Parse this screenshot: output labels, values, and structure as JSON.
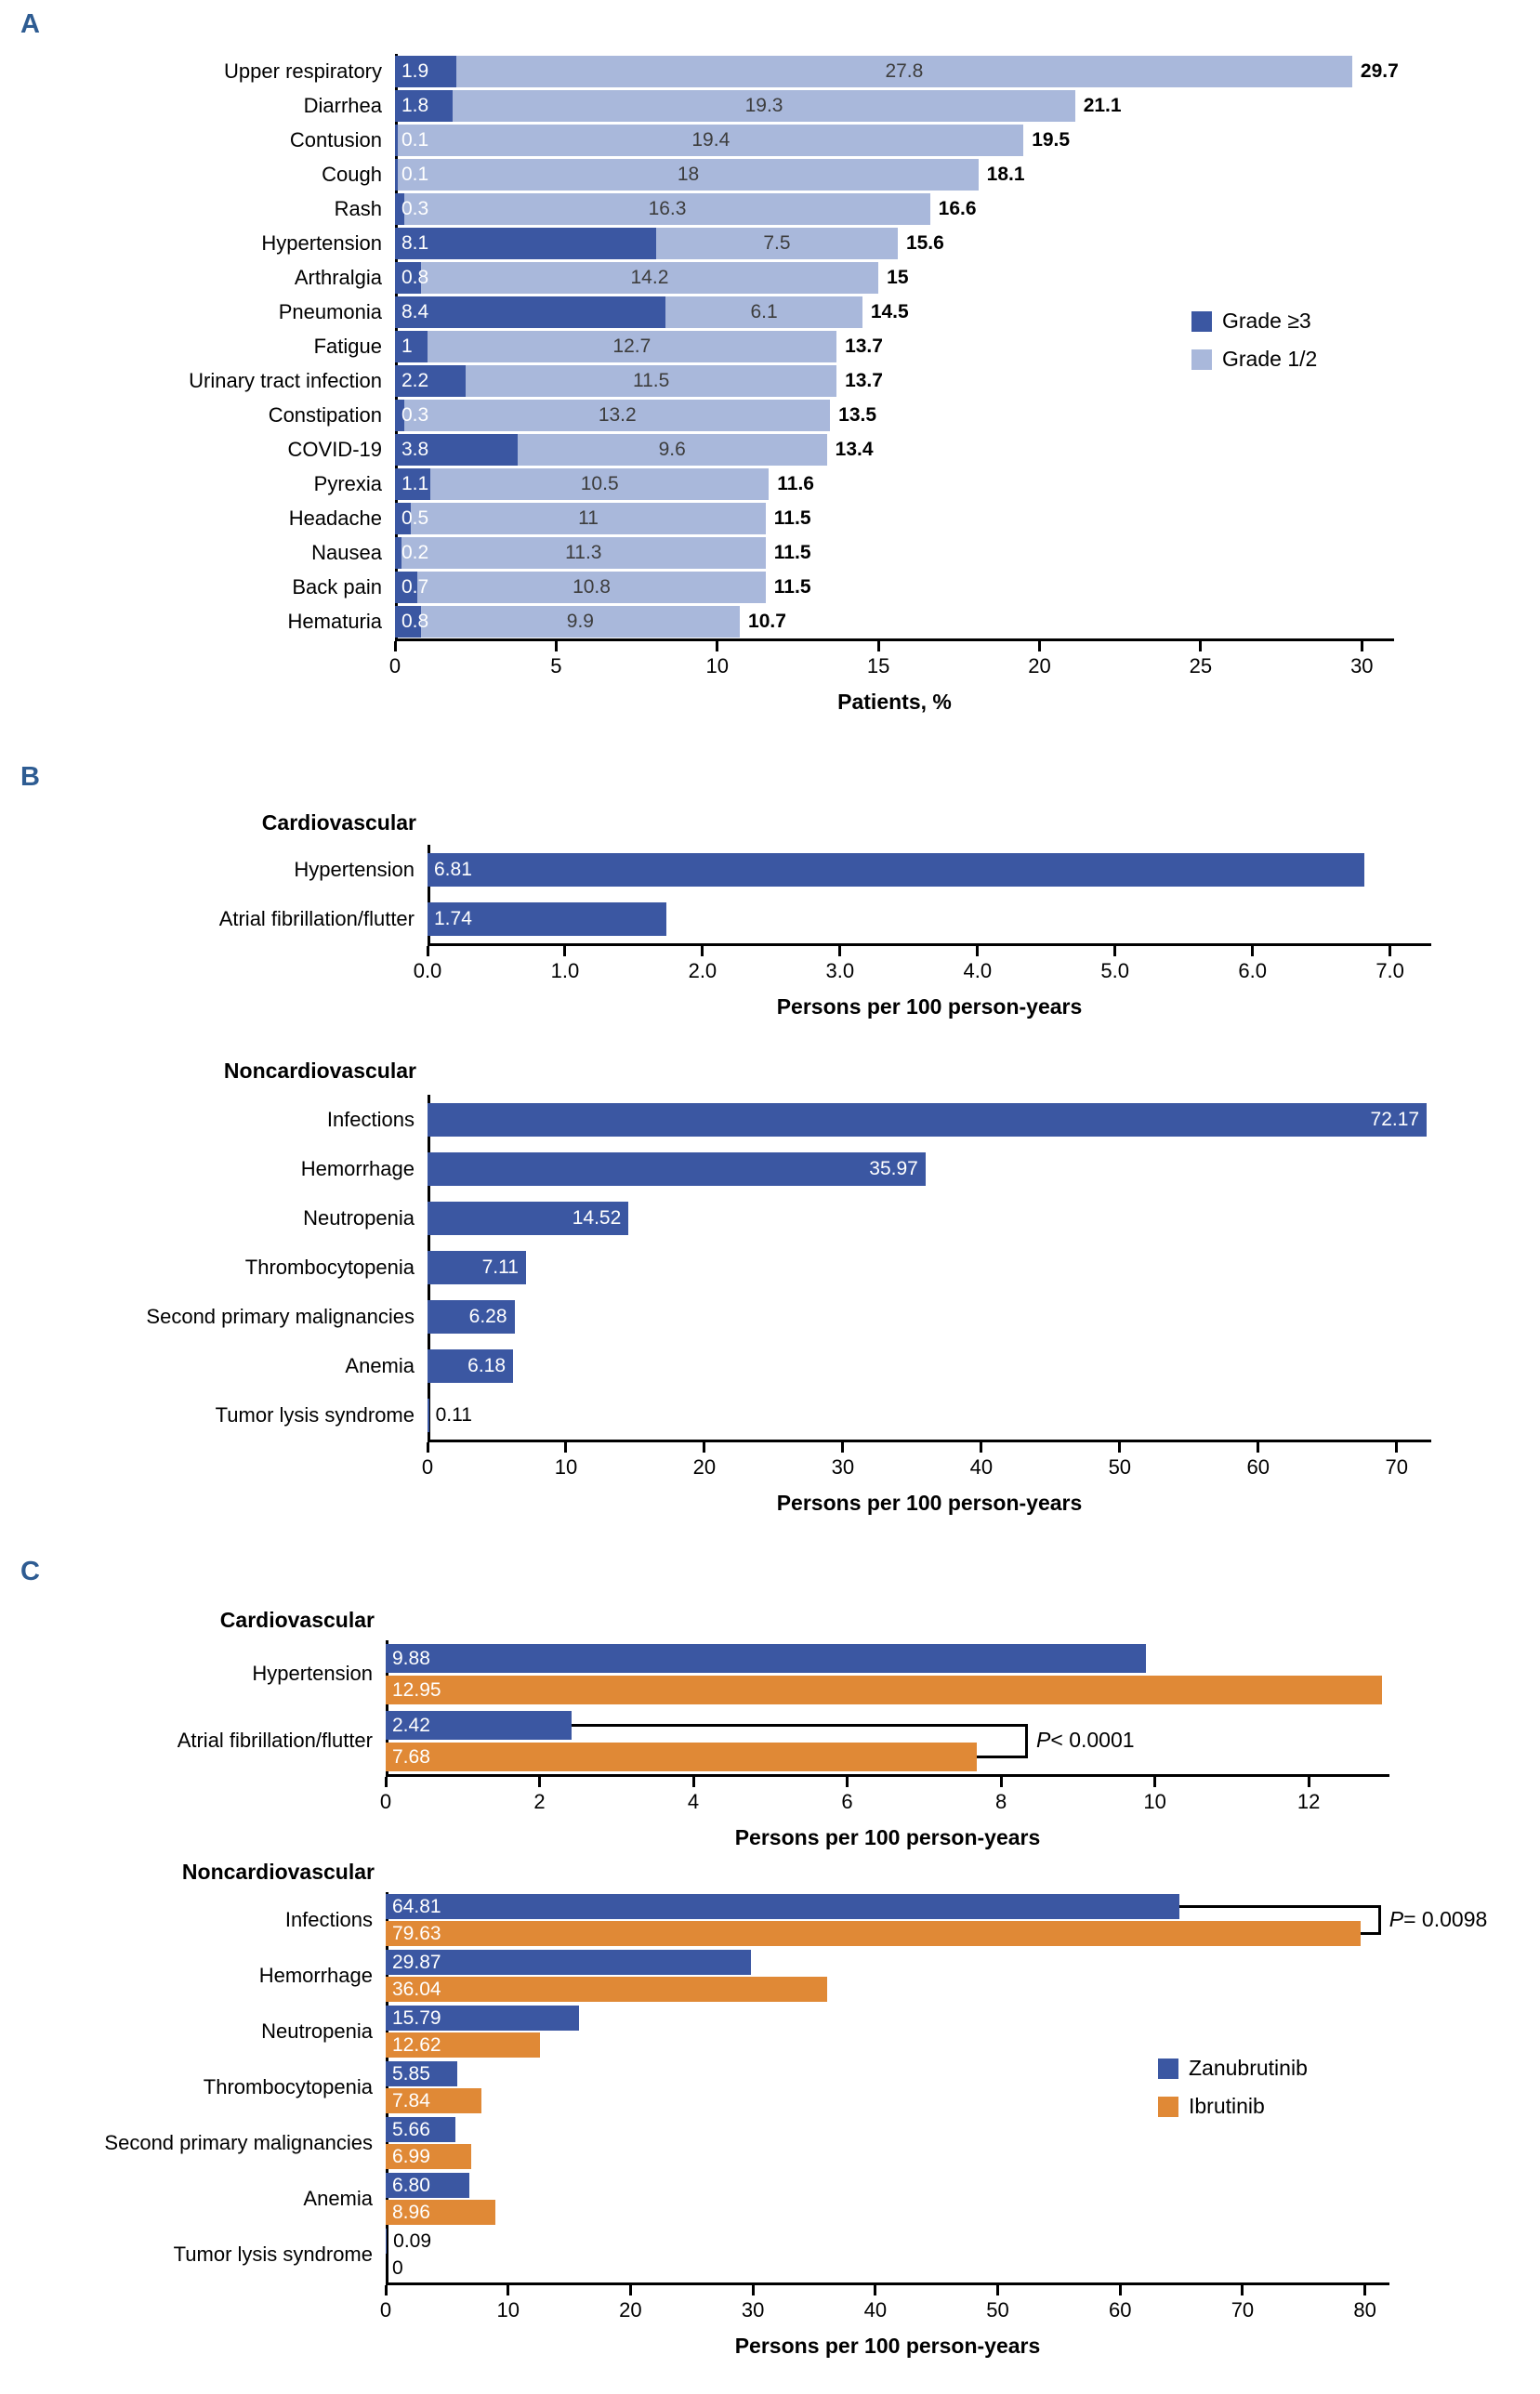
{
  "panels": {
    "a": "A",
    "b": "B",
    "c": "C"
  },
  "legend_a": {
    "grade3": "Grade ≥3",
    "grade12": "Grade 1/2"
  },
  "legend_c": {
    "zanubrutinib": "Zanubrutinib",
    "ibrutinib": "Ibrutinib"
  },
  "colors": {
    "dark_blue": "#3B57A2",
    "light_blue": "#A9B8DB",
    "orange": "#E08936",
    "panel_letter": "#2E5C92",
    "grade12_value_text": "#3D3D3D"
  },
  "chart_data": [
    {
      "id": "a",
      "panel": "A",
      "type": "bar",
      "orientation": "horizontal",
      "stacked": true,
      "categories": [
        "Upper respiratory",
        "Diarrhea",
        "Contusion",
        "Cough",
        "Rash",
        "Hypertension",
        "Arthralgia",
        "Pneumonia",
        "Fatigue",
        "Urinary tract infection",
        "Constipation",
        "COVID-19",
        "Pyrexia",
        "Headache",
        "Nausea",
        "Back pain",
        "Hematuria"
      ],
      "series": [
        {
          "name": "Grade ≥3",
          "values": [
            "1.9",
            "1.8",
            "0.1",
            "0.1",
            "0.3",
            "8.1",
            "0.8",
            "8.4",
            "1",
            "2.2",
            "0.3",
            "3.8",
            "1.1",
            "0.5",
            "0.2",
            "0.7",
            "0.8"
          ]
        },
        {
          "name": "Grade 1/2",
          "values": [
            "27.8",
            "19.3",
            "19.4",
            "18",
            "16.3",
            "7.5",
            "14.2",
            "6.1",
            "12.7",
            "11.5",
            "13.2",
            "9.6",
            "10.5",
            "11",
            "11.3",
            "10.8",
            "9.9"
          ]
        }
      ],
      "totals": [
        "29.7",
        "21.1",
        "19.5",
        "18.1",
        "16.6",
        "15.6",
        "15",
        "14.5",
        "13.7",
        "13.7",
        "13.5",
        "13.4",
        "11.6",
        "11.5",
        "11.5",
        "11.5",
        "10.7"
      ],
      "xlabel": "Patients, %",
      "xlim": [
        0,
        31
      ],
      "tick_values": [
        0,
        5,
        10,
        15,
        20,
        25,
        30
      ],
      "tick_labels": [
        "0",
        "5",
        "10",
        "15",
        "20",
        "25",
        "30"
      ],
      "legend_position": "right",
      "grid": false
    },
    {
      "id": "b1",
      "panel": "B",
      "section": "Cardiovascular",
      "type": "bar",
      "orientation": "horizontal",
      "categories": [
        "Hypertension",
        "Atrial fibrillation/flutter"
      ],
      "values": [
        "6.81",
        "1.74"
      ],
      "xlabel": "Persons per 100 person-years",
      "xlim": [
        0,
        7.3
      ],
      "tick_values": [
        0,
        1,
        2,
        3,
        4,
        5,
        6,
        7
      ],
      "tick_labels": [
        "0.0",
        "1.0",
        "2.0",
        "3.0",
        "4.0",
        "5.0",
        "6.0",
        "7.0"
      ],
      "grid": false
    },
    {
      "id": "b2",
      "panel": "B",
      "section": "Noncardiovascular",
      "type": "bar",
      "orientation": "horizontal",
      "categories": [
        "Infections",
        "Hemorrhage",
        "Neutropenia",
        "Thrombocytopenia",
        "Second primary malignancies",
        "Anemia",
        "Tumor lysis syndrome"
      ],
      "values": [
        "72.17",
        "35.97",
        "14.52",
        "7.11",
        "6.28",
        "6.18",
        "0.11"
      ],
      "xlabel": "Persons per 100 person-years",
      "xlim": [
        0,
        72.5
      ],
      "tick_values": [
        0,
        10,
        20,
        30,
        40,
        50,
        60,
        70
      ],
      "tick_labels": [
        "0",
        "10",
        "20",
        "30",
        "40",
        "50",
        "60",
        "70"
      ],
      "grid": false
    },
    {
      "id": "c1",
      "panel": "C",
      "section": "Cardiovascular",
      "type": "bar",
      "orientation": "horizontal",
      "grouped": true,
      "categories": [
        "Hypertension",
        "Atrial fibrillation/flutter"
      ],
      "series": [
        {
          "name": "Zanubrutinib",
          "values": [
            "9.88",
            "2.42"
          ]
        },
        {
          "name": "Ibrutinib",
          "values": [
            "12.95",
            "7.68"
          ]
        }
      ],
      "xlabel": "Persons per 100 person-years",
      "xlim": [
        0,
        13.05
      ],
      "tick_values": [
        0,
        2,
        4,
        6,
        8,
        10,
        12
      ],
      "tick_labels": [
        "0",
        "2",
        "4",
        "6",
        "8",
        "10",
        "12"
      ],
      "annotations": [
        {
          "row": 1,
          "p": "P",
          "rest": "< 0.0001",
          "bracket_x": 8.35
        }
      ],
      "grid": false
    },
    {
      "id": "c2",
      "panel": "C",
      "section": "Noncardiovascular",
      "type": "bar",
      "orientation": "horizontal",
      "grouped": true,
      "categories": [
        "Infections",
        "Hemorrhage",
        "Neutropenia",
        "Thrombocytopenia",
        "Second primary malignancies",
        "Anemia",
        "Tumor lysis syndrome"
      ],
      "series": [
        {
          "name": "Zanubrutinib",
          "values": [
            "64.81",
            "29.87",
            "15.79",
            "5.85",
            "5.66",
            "6.80",
            "0.09"
          ]
        },
        {
          "name": "Ibrutinib",
          "values": [
            "79.63",
            "36.04",
            "12.62",
            "7.84",
            "6.99",
            "8.96",
            "0"
          ]
        }
      ],
      "xlabel": "Persons per 100 person-years",
      "xlim": [
        0,
        82
      ],
      "tick_values": [
        0,
        10,
        20,
        30,
        40,
        50,
        60,
        70,
        80
      ],
      "tick_labels": [
        "0",
        "10",
        "20",
        "30",
        "40",
        "50",
        "60",
        "70",
        "80"
      ],
      "annotations": [
        {
          "row": 0,
          "p": "P",
          "rest": "= 0.0098",
          "bracket_x": 81.3
        }
      ],
      "legend_position": "right",
      "grid": false
    }
  ]
}
